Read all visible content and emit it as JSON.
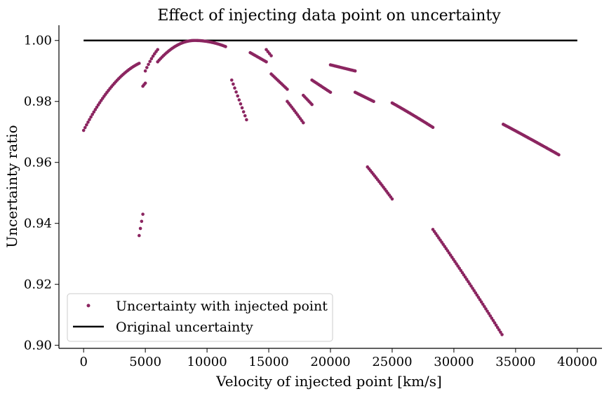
{
  "chart_data": {
    "type": "scatter",
    "title": "Effect of injecting data point on uncertainty",
    "xlabel": "Velocity of injected point [km/s]",
    "ylabel": "Uncertainty ratio",
    "xlim": [
      -2000,
      42000
    ],
    "ylim": [
      0.899,
      1.005
    ],
    "xticks": [
      0,
      5000,
      10000,
      15000,
      20000,
      25000,
      30000,
      35000,
      40000
    ],
    "yticks": [
      0.9,
      0.92,
      0.94,
      0.96,
      0.98,
      1.0
    ],
    "ytick_labels": [
      "0.90",
      "0.92",
      "0.94",
      "0.96",
      "0.98",
      "1.00"
    ],
    "grid": false,
    "legend_position": "lower-left",
    "series": [
      {
        "name": "Uncertainty with injected point",
        "kind": "scatter",
        "color": "#8b2560",
        "segments": [
          {
            "x": [
              0,
              4500
            ],
            "y": [
              0.9705,
              0.9925
            ],
            "curve": 0.6
          },
          {
            "x": [
              4500,
              4800
            ],
            "y": [
              0.936,
              0.943
            ],
            "curve": 0
          },
          {
            "x": [
              4800,
              5000
            ],
            "y": [
              0.985,
              0.986
            ],
            "curve": 0
          },
          {
            "x": [
              5000,
              6000
            ],
            "y": [
              0.99,
              0.997
            ],
            "curve": 0.3
          },
          {
            "x": [
              6000,
              11500
            ],
            "y": [
              0.993,
              0.998
            ],
            "peak": [
              9000,
              1.0
            ]
          },
          {
            "x": [
              12000,
              13200
            ],
            "y": [
              0.987,
              0.974
            ],
            "curve": 0
          },
          {
            "x": [
              13500,
              14800
            ],
            "y": [
              0.996,
              0.993
            ],
            "curve": 0
          },
          {
            "x": [
              14800,
              15200
            ],
            "y": [
              0.997,
              0.995
            ],
            "curve": 0
          },
          {
            "x": [
              15200,
              16500
            ],
            "y": [
              0.989,
              0.984
            ],
            "curve": 0
          },
          {
            "x": [
              16500,
              17800
            ],
            "y": [
              0.98,
              0.973
            ],
            "curve": 0.2
          },
          {
            "x": [
              17800,
              18500
            ],
            "y": [
              0.982,
              0.979
            ],
            "curve": 0
          },
          {
            "x": [
              18500,
              20000
            ],
            "y": [
              0.987,
              0.983
            ],
            "curve": 0
          },
          {
            "x": [
              20000,
              22000
            ],
            "y": [
              0.992,
              0.99
            ],
            "curve": 0
          },
          {
            "x": [
              22000,
              23500
            ],
            "y": [
              0.983,
              0.98
            ],
            "curve": 0
          },
          {
            "x": [
              23000,
              25000
            ],
            "y": [
              0.9585,
              0.948
            ],
            "curve": 0.2
          },
          {
            "x": [
              25000,
              28300
            ],
            "y": [
              0.9795,
              0.9715
            ],
            "curve": 0.2
          },
          {
            "x": [
              28300,
              33900
            ],
            "y": [
              0.938,
              0.9035
            ],
            "curve": 0.2
          },
          {
            "x": [
              34000,
              38500
            ],
            "y": [
              0.9725,
              0.9625
            ],
            "curve": 0.1
          }
        ]
      },
      {
        "name": "Original uncertainty",
        "kind": "line",
        "color": "#000000",
        "x": [
          0,
          40000
        ],
        "y": [
          1.0,
          1.0
        ]
      }
    ]
  }
}
